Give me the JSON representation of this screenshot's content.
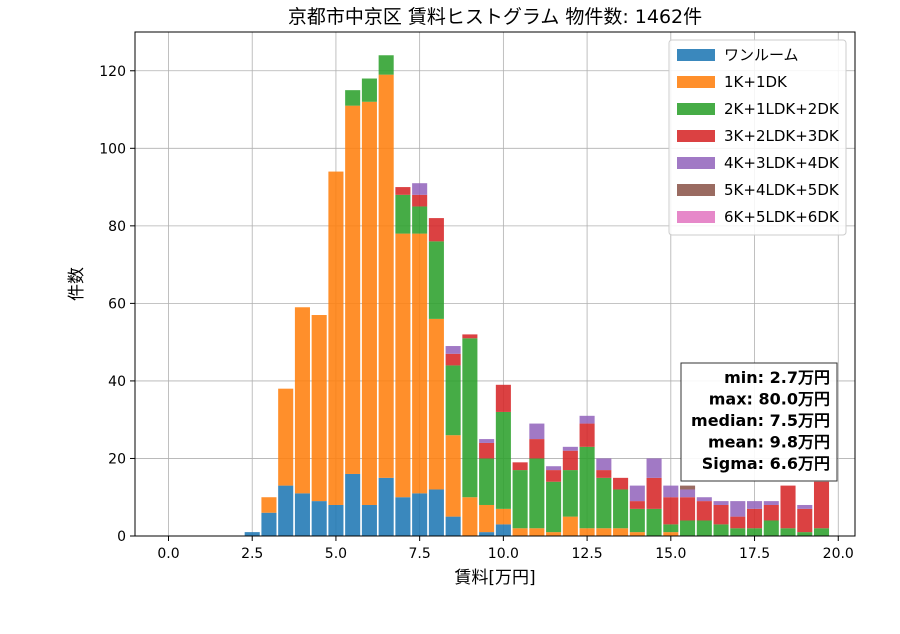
{
  "chart_data": {
    "type": "bar",
    "stacked": true,
    "title": "京都市中京区 賃料ヒストグラム  物件数: 1462件",
    "xlabel": "賃料[万円]",
    "ylabel": "件数",
    "xlim": [
      -1.0,
      20.5
    ],
    "ylim": [
      0,
      130
    ],
    "xticks": [
      0.0,
      2.5,
      5.0,
      7.5,
      10.0,
      12.5,
      15.0,
      17.5,
      20.0
    ],
    "xtick_labels": [
      "0.0",
      "2.5",
      "5.0",
      "7.5",
      "10.0",
      "12.5",
      "15.0",
      "17.5",
      "20.0"
    ],
    "yticks": [
      0,
      20,
      40,
      60,
      80,
      100,
      120
    ],
    "ytick_labels": [
      "0",
      "20",
      "40",
      "60",
      "80",
      "100",
      "120"
    ],
    "grid": true,
    "legend_position": "top-right",
    "bin_width": 0.5,
    "x": [
      2.5,
      3.0,
      3.5,
      4.0,
      4.5,
      5.0,
      5.5,
      6.0,
      6.5,
      7.0,
      7.5,
      8.0,
      8.5,
      9.0,
      9.5,
      10.0,
      10.5,
      11.0,
      11.5,
      12.0,
      12.5,
      13.0,
      13.5,
      14.0,
      14.5,
      15.0,
      15.5,
      16.0,
      16.5,
      17.0,
      17.5,
      18.0,
      18.5,
      19.0,
      19.5
    ],
    "series": [
      {
        "name": "ワンルーム",
        "color": "#1f77b4",
        "values": [
          1,
          6,
          13,
          11,
          9,
          8,
          16,
          8,
          15,
          10,
          11,
          12,
          5,
          0,
          1,
          3,
          0,
          0,
          0,
          0,
          0,
          0,
          0,
          0,
          0,
          0,
          0,
          0,
          0,
          0,
          0,
          0,
          0,
          0,
          0
        ]
      },
      {
        "name": "1K+1DK",
        "color": "#ff7f0e",
        "values": [
          0,
          4,
          25,
          48,
          48,
          86,
          95,
          104,
          104,
          68,
          67,
          44,
          21,
          10,
          7,
          4,
          2,
          2,
          1,
          5,
          2,
          2,
          2,
          1,
          0,
          1,
          0,
          0,
          0,
          0,
          0,
          0,
          0,
          0,
          0
        ]
      },
      {
        "name": "2K+1LDK+2DK",
        "color": "#2ca02c",
        "values": [
          0,
          0,
          0,
          0,
          0,
          0,
          4,
          6,
          5,
          10,
          7,
          20,
          18,
          41,
          12,
          25,
          15,
          18,
          13,
          12,
          21,
          13,
          10,
          6,
          7,
          2,
          4,
          4,
          3,
          2,
          2,
          4,
          2,
          1,
          2
        ]
      },
      {
        "name": "3K+2LDK+3DK",
        "color": "#d62728",
        "values": [
          0,
          0,
          0,
          0,
          0,
          0,
          0,
          0,
          0,
          2,
          3,
          6,
          3,
          1,
          4,
          7,
          2,
          5,
          3,
          5,
          6,
          2,
          3,
          2,
          8,
          7,
          6,
          5,
          5,
          3,
          5,
          4,
          11,
          6,
          12
        ]
      },
      {
        "name": "4K+3LDK+4DK",
        "color": "#9467bd",
        "values": [
          0,
          0,
          0,
          0,
          0,
          0,
          0,
          0,
          0,
          0,
          3,
          0,
          2,
          0,
          1,
          0,
          0,
          4,
          1,
          1,
          2,
          3,
          0,
          4,
          5,
          3,
          2,
          1,
          1,
          4,
          2,
          1,
          0,
          1,
          0
        ]
      },
      {
        "name": "5K+4LDK+5DK",
        "color": "#8c564b",
        "values": [
          0,
          0,
          0,
          0,
          0,
          0,
          0,
          0,
          0,
          0,
          0,
          0,
          0,
          0,
          0,
          0,
          0,
          0,
          0,
          0,
          0,
          0,
          0,
          0,
          0,
          0,
          1,
          0,
          0,
          0,
          0,
          0,
          0,
          0,
          0
        ]
      },
      {
        "name": "6K+5LDK+6DK",
        "color": "#e377c2",
        "values": [
          0,
          0,
          0,
          0,
          0,
          0,
          0,
          0,
          0,
          0,
          0,
          0,
          0,
          0,
          0,
          0,
          0,
          0,
          0,
          0,
          0,
          0,
          0,
          0,
          0,
          0,
          0,
          0,
          0,
          0,
          0,
          0,
          0,
          0,
          0
        ]
      }
    ],
    "annotations": [
      "min: 2.7万円",
      "max: 80.0万円",
      "median: 7.5万円",
      "mean: 9.8万円",
      "Sigma: 6.6万円"
    ]
  }
}
